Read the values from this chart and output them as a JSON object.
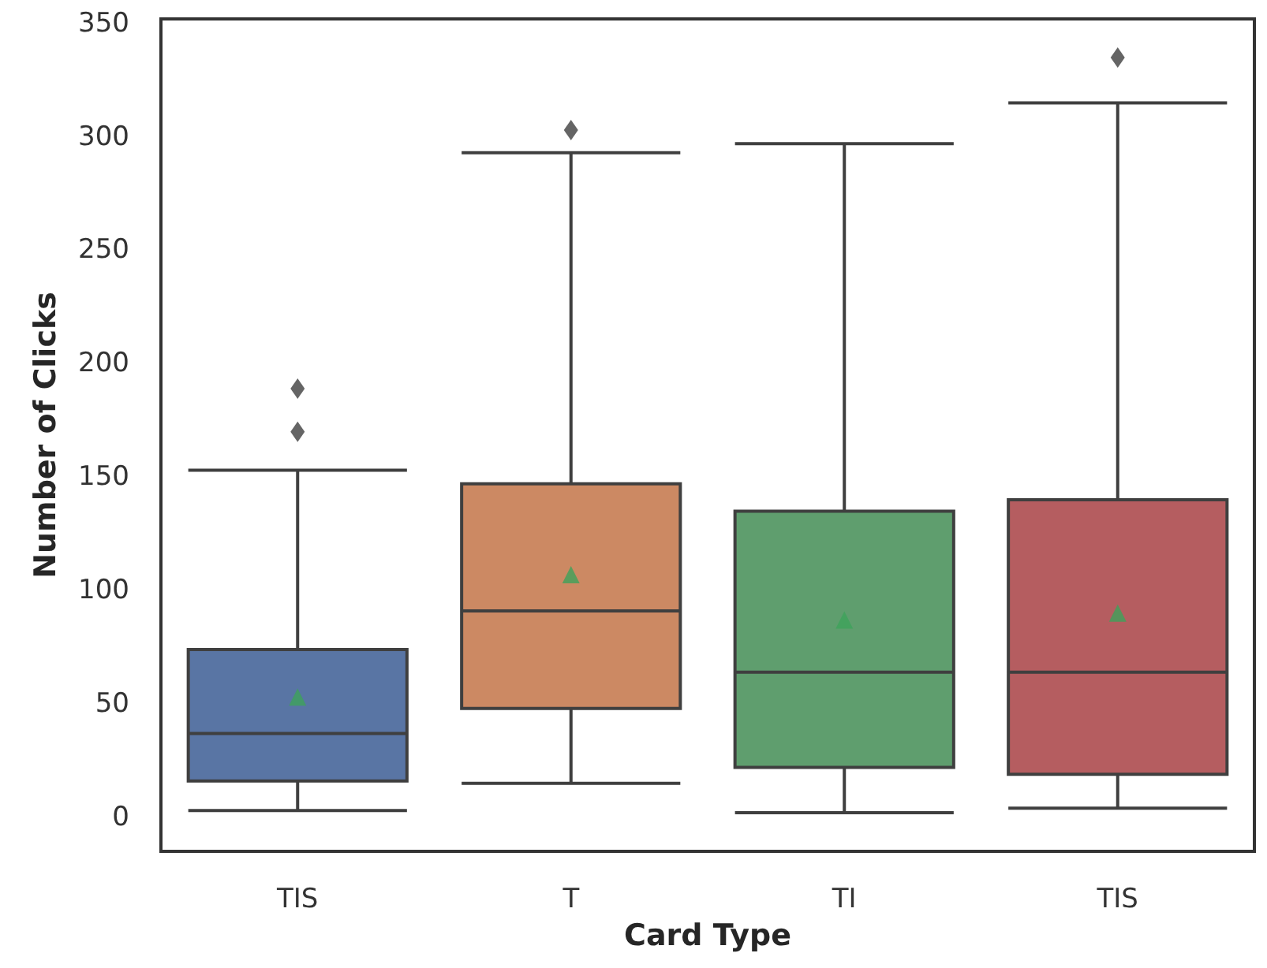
{
  "chart_data": {
    "type": "box",
    "xlabel": "Card Type",
    "ylabel": "Number of Clicks",
    "categories": [
      "TIS",
      "T",
      "TI",
      "TIS"
    ],
    "colors": [
      "#5975a4",
      "#cc8963",
      "#5f9e6e",
      "#b55d60"
    ],
    "boxes": [
      {
        "low": 3,
        "q1": 16,
        "median": 37,
        "q3": 74,
        "high": 153,
        "mean": 53,
        "outliers": [
          170,
          189
        ]
      },
      {
        "low": 15,
        "q1": 48,
        "median": 91,
        "q3": 147,
        "high": 293,
        "mean": 107,
        "outliers": [
          303
        ]
      },
      {
        "low": 2,
        "q1": 22,
        "median": 64,
        "q3": 135,
        "high": 297,
        "mean": 87
      },
      {
        "low": 4,
        "q1": 19,
        "median": 64,
        "q3": 140,
        "high": 315,
        "mean": 90,
        "outliers": [
          335
        ]
      }
    ],
    "ylim": [
      -15,
      352
    ],
    "yticks": [
      0,
      50,
      100,
      150,
      200,
      250,
      300,
      350
    ],
    "grid": false,
    "marker": "diamond"
  }
}
